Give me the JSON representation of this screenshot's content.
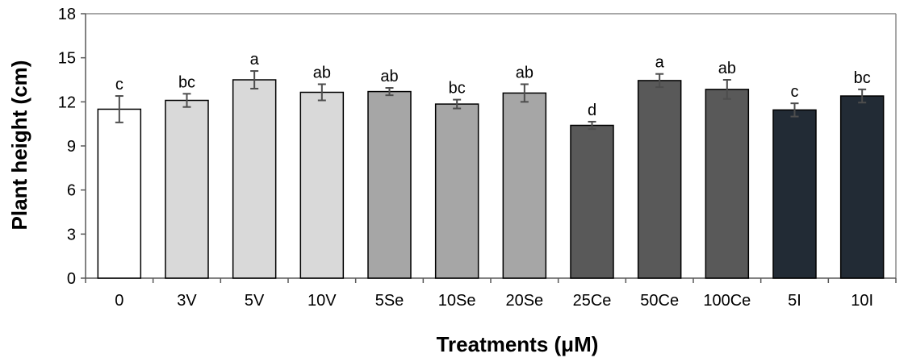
{
  "chart_data": {
    "type": "bar",
    "title": "",
    "xlabel": "Treatments (μM)",
    "ylabel": "Plant height (cm)",
    "ylim": [
      0,
      18
    ],
    "yticks": [
      "0",
      "3",
      "6",
      "9",
      "12",
      "15",
      "18"
    ],
    "grid": false,
    "categories": [
      "0",
      "3V",
      "5V",
      "10V",
      "5Se",
      "10Se",
      "20Se",
      "25Ce",
      "50Ce",
      "100Ce",
      "5I",
      "10I"
    ],
    "values": [
      11.5,
      12.1,
      13.5,
      12.65,
      12.7,
      11.85,
      12.6,
      10.4,
      13.45,
      12.85,
      11.45,
      12.4
    ],
    "errors": [
      0.9,
      0.45,
      0.6,
      0.55,
      0.25,
      0.3,
      0.6,
      0.25,
      0.45,
      0.65,
      0.45,
      0.45
    ],
    "significance": [
      "c",
      "bc",
      "a",
      "ab",
      "ab",
      "bc",
      "ab",
      "d",
      "a",
      "ab",
      "c",
      "bc"
    ],
    "bar_colors": [
      "#ffffff",
      "#d9d9d9",
      "#d9d9d9",
      "#d9d9d9",
      "#a6a6a6",
      "#a6a6a6",
      "#a6a6a6",
      "#595959",
      "#595959",
      "#595959",
      "#222b35",
      "#222b35"
    ]
  }
}
